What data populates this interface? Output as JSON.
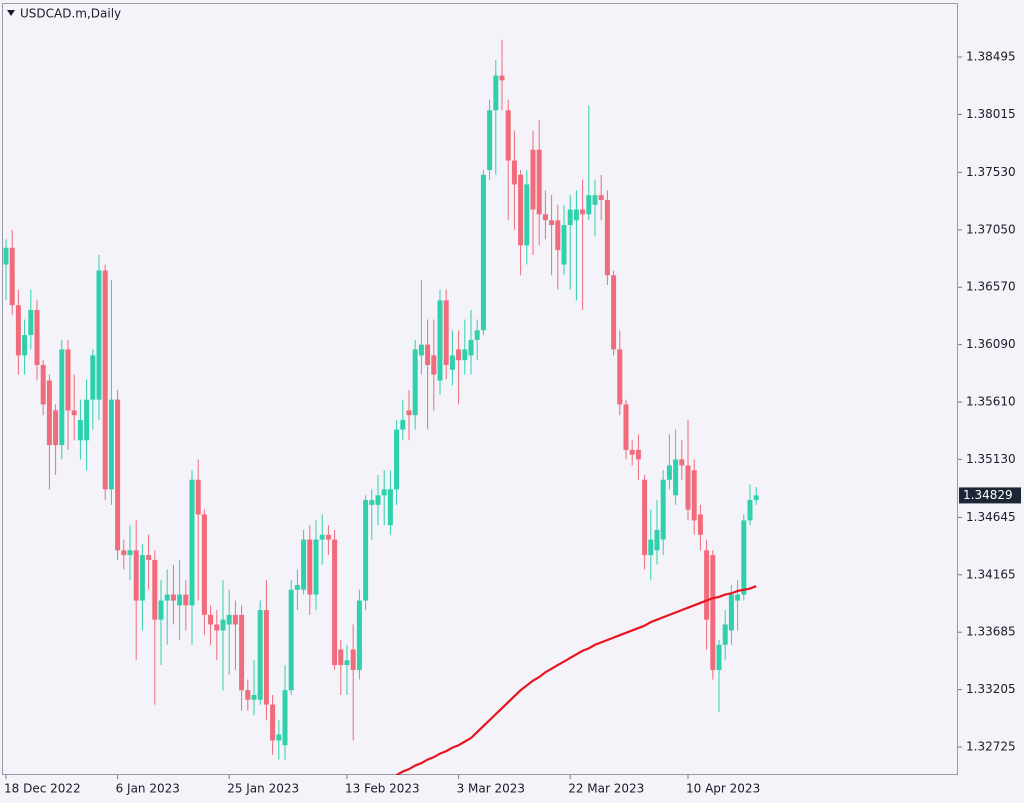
{
  "chart_data": {
    "type": "candlestick",
    "title": "USDCAD.m,Daily",
    "categories": [
      "18 Dec 2022",
      null,
      null,
      null,
      null,
      null,
      null,
      null,
      null,
      null,
      null,
      null,
      null,
      null,
      null,
      null,
      null,
      null,
      "6 Jan 2023",
      null,
      null,
      null,
      null,
      null,
      null,
      null,
      null,
      null,
      null,
      null,
      null,
      null,
      null,
      null,
      null,
      null,
      "25 Jan 2023",
      null,
      null,
      null,
      null,
      null,
      null,
      null,
      null,
      null,
      null,
      null,
      null,
      null,
      null,
      null,
      null,
      null,
      null,
      "13 Feb 2023",
      null,
      null,
      null,
      null,
      null,
      null,
      null,
      null,
      null,
      null,
      null,
      null,
      null,
      null,
      null,
      null,
      null,
      "3 Mar 2023",
      null,
      null,
      null,
      null,
      null,
      null,
      null,
      null,
      null,
      null,
      null,
      null,
      null,
      null,
      null,
      null,
      null,
      "22 Mar 2023",
      null,
      null,
      null,
      null,
      null,
      null,
      null,
      null,
      null,
      null,
      null,
      null,
      null,
      null,
      null,
      null,
      null,
      null,
      "10 Apr 2023",
      null,
      null,
      null,
      null,
      null,
      null,
      null,
      null,
      null,
      null,
      null
    ],
    "open": [
      1.3676,
      1.369,
      1.3642,
      1.36,
      1.3617,
      1.3638,
      1.3592,
      1.3579,
      1.3554,
      1.3525,
      1.3605,
      1.3554,
      1.3529,
      1.3529,
      1.3563,
      1.3563,
      1.3671,
      1.3488,
      1.3563,
      1.3437,
      1.3433,
      1.3437,
      1.3395,
      1.3433,
      1.3429,
      1.3379,
      1.3395,
      1.34,
      1.3391,
      1.34,
      1.3391,
      1.3496,
      1.3467,
      1.3383,
      1.3375,
      1.337,
      1.3375,
      1.3383,
      1.3383,
      1.332,
      1.3312,
      1.3312,
      1.3387,
      1.3308,
      1.3278,
      1.3274,
      1.332,
      1.3404,
      1.3404,
      1.3446,
      1.34,
      1.3446,
      1.345,
      1.3446,
      1.3354,
      1.3341,
      1.3354,
      1.3337,
      1.3395,
      1.3475,
      1.3475,
      1.3483,
      1.3458,
      1.3488,
      1.3538,
      1.3554,
      1.355,
      1.36,
      1.3609,
      1.36,
      1.3579,
      1.3646,
      1.3588,
      1.3605,
      1.3596,
      1.36,
      1.3613,
      1.3621,
      1.3755,
      1.3805,
      1.3834,
      1.3805,
      1.3763,
      1.3751,
      1.3692,
      1.3772,
      1.3772,
      1.3718,
      1.3713,
      1.3713,
      1.3676,
      1.3709,
      1.3713,
      1.3722,
      1.3718,
      1.3726,
      1.3734,
      1.373,
      1.3667,
      1.3605,
      1.3559,
      1.3521,
      1.3521,
      1.3496,
      1.3433,
      1.3437,
      1.3446,
      1.3496,
      1.3483,
      1.3513,
      1.3508,
      1.3504,
      1.3467,
      1.3437,
      1.3433,
      1.3337,
      1.3358,
      1.337,
      1.3395,
      1.34,
      1.3462,
      1.3479
    ],
    "high": [
      1.3697,
      1.3705,
      1.3655,
      1.363,
      1.3655,
      1.3646,
      1.3596,
      1.3584,
      1.3559,
      1.3613,
      1.3613,
      1.3584,
      1.3563,
      1.358,
      1.3605,
      1.3684,
      1.3676,
      1.3663,
      1.3571,
      1.3446,
      1.3458,
      1.3462,
      1.3442,
      1.345,
      1.3437,
      1.3412,
      1.3421,
      1.3425,
      1.3429,
      1.3412,
      1.3504,
      1.3513,
      1.3471,
      1.3391,
      1.3387,
      1.3412,
      1.3404,
      1.3395,
      1.3391,
      1.3329,
      1.3345,
      1.3395,
      1.3412,
      1.3316,
      1.3295,
      1.3341,
      1.3412,
      1.3421,
      1.3454,
      1.3458,
      1.3462,
      1.3467,
      1.3458,
      1.3454,
      1.3362,
      1.3358,
      1.3375,
      1.3404,
      1.3483,
      1.3488,
      1.35,
      1.3504,
      1.3504,
      1.3546,
      1.3563,
      1.3571,
      1.3613,
      1.3663,
      1.363,
      1.363,
      1.3655,
      1.3655,
      1.3621,
      1.3621,
      1.363,
      1.3638,
      1.363,
      1.3755,
      1.3814,
      1.3847,
      1.3864,
      1.3814,
      1.3788,
      1.3755,
      1.3755,
      1.3788,
      1.3797,
      1.3738,
      1.3734,
      1.3726,
      1.3726,
      1.3734,
      1.3738,
      1.3747,
      1.3809,
      1.3747,
      1.3751,
      1.3738,
      1.3671,
      1.3621,
      1.3563,
      1.3529,
      1.3534,
      1.35,
      1.3471,
      1.3479,
      1.3504,
      1.3534,
      1.3538,
      1.3529,
      1.3546,
      1.3513,
      1.3475,
      1.3446,
      1.3437,
      1.3362,
      1.3387,
      1.3408,
      1.3412,
      1.3467,
      1.3492,
      1.349
    ],
    "low": [
      1.3646,
      1.3634,
      1.3584,
      1.3584,
      1.3605,
      1.3579,
      1.355,
      1.3488,
      1.35,
      1.3513,
      1.3521,
      1.3529,
      1.3513,
      1.3504,
      1.3538,
      1.3546,
      1.3479,
      1.3475,
      1.3429,
      1.3421,
      1.3412,
      1.3345,
      1.337,
      1.3404,
      1.3308,
      1.3341,
      1.3358,
      1.3375,
      1.3362,
      1.337,
      1.3358,
      1.3395,
      1.3366,
      1.3358,
      1.3345,
      1.332,
      1.3333,
      1.3337,
      1.3303,
      1.3303,
      1.3299,
      1.3308,
      1.3295,
      1.3266,
      1.3262,
      1.3262,
      1.3316,
      1.3387,
      1.34,
      1.3383,
      1.3387,
      1.3425,
      1.3433,
      1.3337,
      1.3316,
      1.3316,
      1.3278,
      1.3329,
      1.3387,
      1.3446,
      1.3458,
      1.3458,
      1.345,
      1.3475,
      1.3529,
      1.3529,
      1.3538,
      1.3584,
      1.3538,
      1.3554,
      1.3567,
      1.358,
      1.3575,
      1.3559,
      1.3584,
      1.3584,
      1.3596,
      1.3617,
      1.3747,
      1.3751,
      1.3805,
      1.3713,
      1.3705,
      1.3667,
      1.3676,
      1.3684,
      1.3692,
      1.3697,
      1.3667,
      1.3655,
      1.3667,
      1.3655,
      1.3646,
      1.3638,
      1.3713,
      1.37,
      1.3713,
      1.3659,
      1.36,
      1.355,
      1.3513,
      1.3508,
      1.3496,
      1.3421,
      1.3412,
      1.3425,
      1.3433,
      1.3488,
      1.3475,
      1.3496,
      1.3462,
      1.345,
      1.3437,
      1.3354,
      1.3329,
      1.3302,
      1.3345,
      1.3358,
      1.337,
      1.3395,
      1.3458,
      1.3475
    ],
    "close": [
      1.369,
      1.3642,
      1.36,
      1.3617,
      1.3638,
      1.3592,
      1.3559,
      1.3525,
      1.3525,
      1.3605,
      1.3554,
      1.355,
      1.3546,
      1.3563,
      1.36,
      1.3671,
      1.3488,
      1.3563,
      1.3437,
      1.3433,
      1.3437,
      1.3395,
      1.3433,
      1.3429,
      1.3379,
      1.3395,
      1.34,
      1.3395,
      1.34,
      1.3391,
      1.3496,
      1.3467,
      1.3383,
      1.3375,
      1.337,
      1.3379,
      1.3383,
      1.3375,
      1.332,
      1.3312,
      1.3316,
      1.3387,
      1.3308,
      1.3278,
      1.3283,
      1.332,
      1.3404,
      1.3408,
      1.3446,
      1.34,
      1.3446,
      1.345,
      1.3446,
      1.3341,
      1.3341,
      1.3345,
      1.3337,
      1.3395,
      1.3479,
      1.3479,
      1.3483,
      1.3488,
      1.3488,
      1.3538,
      1.3546,
      1.355,
      1.3605,
      1.3609,
      1.3592,
      1.3584,
      1.3646,
      1.3592,
      1.36,
      1.3596,
      1.3605,
      1.3613,
      1.3621,
      1.3751,
      1.3805,
      1.3834,
      1.383,
      1.3763,
      1.3743,
      1.3692,
      1.3743,
      1.3722,
      1.3718,
      1.3713,
      1.3709,
      1.3688,
      1.3709,
      1.3722,
      1.3722,
      1.3718,
      1.3734,
      1.3734,
      1.373,
      1.3667,
      1.3605,
      1.3559,
      1.3521,
      1.3517,
      1.3513,
      1.3433,
      1.3446,
      1.3454,
      1.3496,
      1.3508,
      1.3513,
      1.3508,
      1.3471,
      1.3462,
      1.345,
      1.3379,
      1.3337,
      1.3358,
      1.3375,
      1.34,
      1.34,
      1.3462,
      1.3479,
      1.34829
    ],
    "up_color": "#2fd1ad",
    "down_color": "#f06b7b",
    "lines": [
      {
        "color": "#e8141e",
        "values": [
          null,
          null,
          null,
          null,
          null,
          null,
          null,
          null,
          null,
          null,
          null,
          null,
          null,
          null,
          null,
          null,
          null,
          null,
          null,
          null,
          null,
          null,
          null,
          null,
          null,
          null,
          null,
          null,
          null,
          null,
          null,
          null,
          null,
          null,
          null,
          null,
          null,
          null,
          null,
          null,
          null,
          null,
          null,
          null,
          null,
          null,
          null,
          null,
          null,
          null,
          null,
          null,
          null,
          null,
          null,
          null,
          null,
          null,
          null,
          null,
          null,
          null,
          null,
          1.3249,
          1.3252,
          1.3254,
          1.3257,
          1.3259,
          1.3262,
          1.3264,
          1.3267,
          1.3269,
          1.3272,
          1.3274,
          1.3277,
          1.328,
          1.3285,
          1.329,
          1.3295,
          1.33,
          1.3305,
          1.331,
          1.3315,
          1.332,
          1.3324,
          1.3328,
          1.3331,
          1.3335,
          1.3338,
          1.3341,
          1.3344,
          1.3347,
          1.335,
          1.3353,
          1.3355,
          1.3358,
          1.336,
          1.3362,
          1.3364,
          1.3366,
          1.3368,
          1.337,
          1.3372,
          1.3374,
          1.3377,
          1.3379,
          1.3381,
          1.3383,
          1.3385,
          1.3387,
          1.3389,
          1.3391,
          1.3393,
          1.3395,
          1.3397,
          1.3398,
          1.34,
          1.3401,
          1.3403,
          1.3404,
          1.3405,
          1.3407
        ]
      }
    ],
    "last_price": 1.34829,
    "ylim": [
      1.32491,
      1.38947
    ],
    "yticks": [
      1.38495,
      1.38015,
      {
        "value": 1.3753,
        "label": "1.37530"
      },
      {
        "value": 1.3705,
        "label": "1.37050"
      },
      {
        "value": 1.3657,
        "label": "1.36570"
      },
      {
        "value": 1.3609,
        "label": "1.36090"
      },
      {
        "value": 1.3561,
        "label": "1.35610"
      },
      {
        "value": 1.3513,
        "label": "1.35130"
      },
      1.34645,
      1.34165,
      1.33685,
      1.33205,
      1.32725
    ]
  }
}
